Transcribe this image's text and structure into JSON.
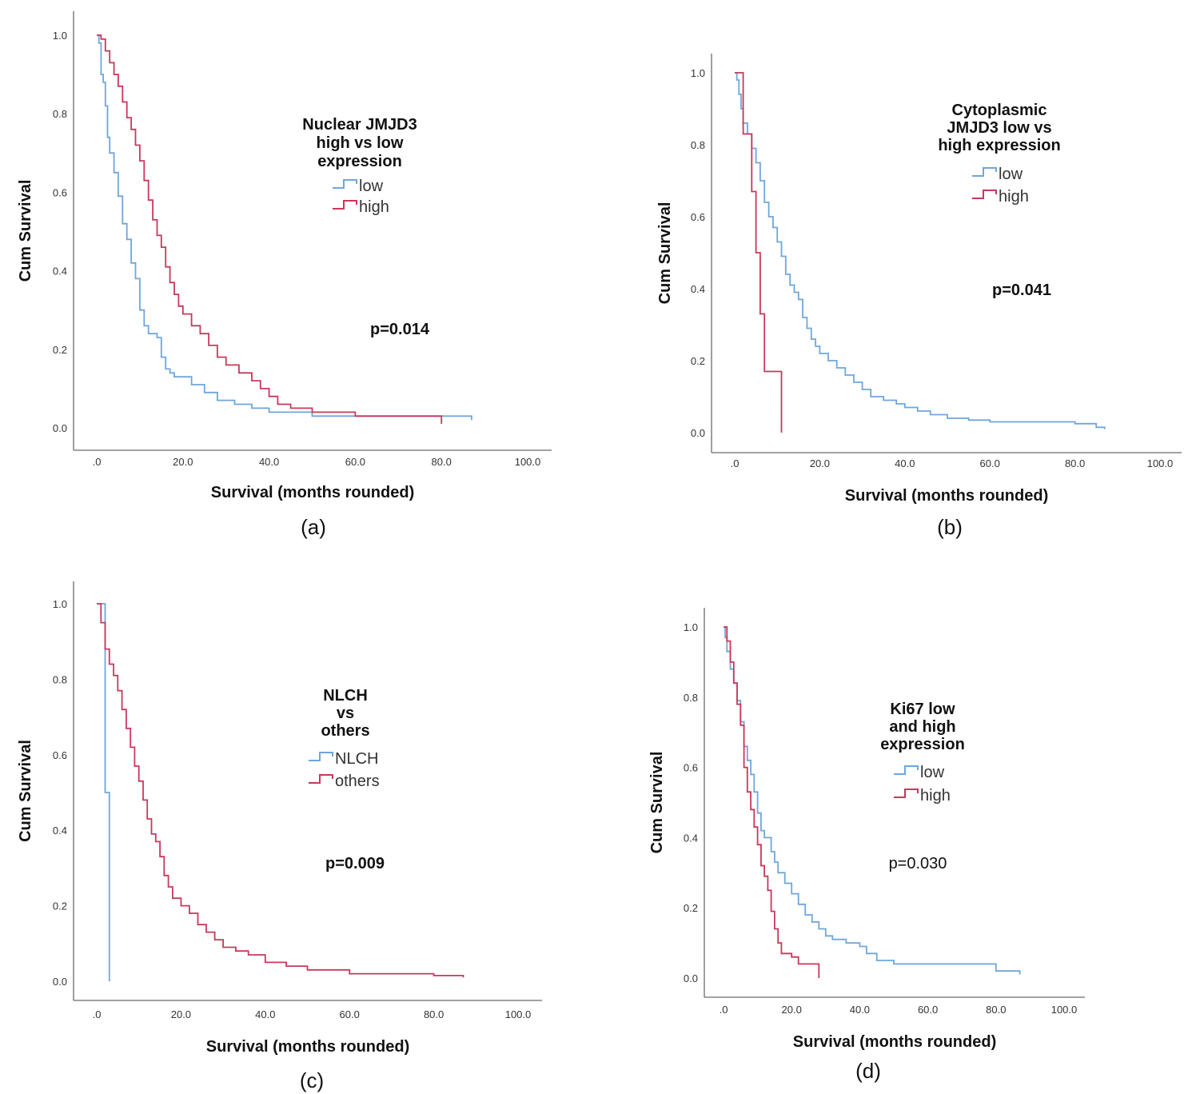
{
  "colors": {
    "low": "#6fa6dc",
    "high": "#c8385a",
    "axis": "#6b6b6b"
  },
  "chart_data": [
    {
      "id": "a",
      "type": "line",
      "caption": "(a)",
      "xlabel": "Survival (months rounded)",
      "ylabel": "Cum Survival",
      "xlim": [
        0,
        100
      ],
      "ylim": [
        0,
        1
      ],
      "xticks": [
        ".0",
        "20.0",
        "40.0",
        "60.0",
        "80.0",
        "100.0"
      ],
      "yticks": [
        "0.0",
        "0.2",
        "0.4",
        "0.6",
        "0.8",
        "1.0"
      ],
      "legend_title": [
        "Nuclear JMJD3",
        "high vs low",
        "expression"
      ],
      "p_value": "p=0.014",
      "p_bold": true,
      "series": [
        {
          "name": "low",
          "color": "#6fa6dc",
          "points": [
            [
              0,
              1
            ],
            [
              0.5,
              0.98
            ],
            [
              1,
              0.9
            ],
            [
              1.5,
              0.88
            ],
            [
              2,
              0.82
            ],
            [
              2.5,
              0.74
            ],
            [
              3,
              0.7
            ],
            [
              4,
              0.65
            ],
            [
              5,
              0.59
            ],
            [
              6,
              0.52
            ],
            [
              7,
              0.48
            ],
            [
              8,
              0.42
            ],
            [
              9,
              0.38
            ],
            [
              10,
              0.3
            ],
            [
              11,
              0.26
            ],
            [
              12,
              0.24
            ],
            [
              14,
              0.23
            ],
            [
              15,
              0.18
            ],
            [
              16,
              0.15
            ],
            [
              17,
              0.14
            ],
            [
              18,
              0.13
            ],
            [
              22,
              0.11
            ],
            [
              25,
              0.09
            ],
            [
              28,
              0.07
            ],
            [
              32,
              0.06
            ],
            [
              36,
              0.05
            ],
            [
              40,
              0.04
            ],
            [
              50,
              0.03
            ],
            [
              65,
              0.03
            ],
            [
              80,
              0.03
            ],
            [
              87,
              0.03
            ],
            [
              87,
              0.02
            ]
          ]
        },
        {
          "name": "high",
          "color": "#c8385a",
          "points": [
            [
              0,
              1
            ],
            [
              1,
              0.99
            ],
            [
              2,
              0.96
            ],
            [
              3,
              0.93
            ],
            [
              4,
              0.9
            ],
            [
              5,
              0.87
            ],
            [
              6,
              0.83
            ],
            [
              7,
              0.79
            ],
            [
              8,
              0.76
            ],
            [
              9,
              0.72
            ],
            [
              10,
              0.68
            ],
            [
              11,
              0.63
            ],
            [
              12,
              0.58
            ],
            [
              13,
              0.53
            ],
            [
              14,
              0.49
            ],
            [
              15,
              0.46
            ],
            [
              16,
              0.41
            ],
            [
              17,
              0.37
            ],
            [
              18,
              0.34
            ],
            [
              19,
              0.31
            ],
            [
              20,
              0.29
            ],
            [
              22,
              0.26
            ],
            [
              24,
              0.24
            ],
            [
              26,
              0.21
            ],
            [
              28,
              0.18
            ],
            [
              30,
              0.16
            ],
            [
              33,
              0.14
            ],
            [
              36,
              0.12
            ],
            [
              38,
              0.1
            ],
            [
              40,
              0.08
            ],
            [
              42,
              0.06
            ],
            [
              45,
              0.05
            ],
            [
              50,
              0.04
            ],
            [
              60,
              0.03
            ],
            [
              70,
              0.03
            ],
            [
              80,
              0.03
            ],
            [
              80,
              0.01
            ]
          ]
        }
      ]
    },
    {
      "id": "b",
      "type": "line",
      "caption": "(b)",
      "xlabel": "Survival (months rounded)",
      "ylabel": "Cum Survival",
      "xlim": [
        0,
        100
      ],
      "ylim": [
        0,
        1
      ],
      "xticks": [
        ".0",
        "20.0",
        "40.0",
        "60.0",
        "80.0",
        "100.0"
      ],
      "yticks": [
        "0.0",
        "0.2",
        "0.4",
        "0.6",
        "0.8",
        "1.0"
      ],
      "legend_title": [
        "Cytoplasmic",
        "JMJD3 low vs",
        "high expression"
      ],
      "p_value": "p=0.041",
      "p_bold": true,
      "series": [
        {
          "name": "low",
          "color": "#6fa6dc",
          "points": [
            [
              0,
              1
            ],
            [
              0.5,
              0.98
            ],
            [
              1,
              0.94
            ],
            [
              1.5,
              0.9
            ],
            [
              2,
              0.86
            ],
            [
              3,
              0.83
            ],
            [
              4,
              0.79
            ],
            [
              5,
              0.75
            ],
            [
              6,
              0.7
            ],
            [
              7,
              0.64
            ],
            [
              8,
              0.6
            ],
            [
              9,
              0.57
            ],
            [
              10,
              0.53
            ],
            [
              11,
              0.49
            ],
            [
              12,
              0.44
            ],
            [
              13,
              0.41
            ],
            [
              14,
              0.39
            ],
            [
              15,
              0.37
            ],
            [
              16,
              0.32
            ],
            [
              17,
              0.29
            ],
            [
              18,
              0.26
            ],
            [
              19,
              0.24
            ],
            [
              20,
              0.22
            ],
            [
              22,
              0.2
            ],
            [
              24,
              0.18
            ],
            [
              26,
              0.16
            ],
            [
              28,
              0.14
            ],
            [
              30,
              0.12
            ],
            [
              32,
              0.1
            ],
            [
              35,
              0.09
            ],
            [
              38,
              0.08
            ],
            [
              40,
              0.07
            ],
            [
              43,
              0.06
            ],
            [
              46,
              0.05
            ],
            [
              50,
              0.04
            ],
            [
              55,
              0.035
            ],
            [
              60,
              0.03
            ],
            [
              70,
              0.03
            ],
            [
              80,
              0.025
            ],
            [
              85,
              0.015
            ],
            [
              87,
              0.01
            ]
          ]
        },
        {
          "name": "high",
          "color": "#c8385a",
          "points": [
            [
              0,
              1
            ],
            [
              2,
              1
            ],
            [
              2,
              0.83
            ],
            [
              3,
              0.83
            ],
            [
              4,
              0.67
            ],
            [
              5,
              0.67
            ],
            [
              5,
              0.5
            ],
            [
              6,
              0.5
            ],
            [
              6,
              0.33
            ],
            [
              7,
              0.33
            ],
            [
              7,
              0.17
            ],
            [
              11,
              0.17
            ],
            [
              11,
              0
            ]
          ]
        }
      ]
    },
    {
      "id": "c",
      "type": "line",
      "caption": "(c)",
      "xlabel": "Survival (months rounded)",
      "ylabel": "Cum Survival",
      "xlim": [
        0,
        100
      ],
      "ylim": [
        0,
        1
      ],
      "xticks": [
        ".0",
        "20.0",
        "40.0",
        "60.0",
        "80.0",
        "100.0"
      ],
      "yticks": [
        "0.0",
        "0.2",
        "0.4",
        "0.6",
        "0.8",
        "1.0"
      ],
      "legend_title": [
        "NLCH",
        "vs",
        "others"
      ],
      "p_value": "p=0.009",
      "p_bold": true,
      "series": [
        {
          "name": "NLCH",
          "color": "#6fa6dc",
          "points": [
            [
              0,
              1
            ],
            [
              2,
              1
            ],
            [
              2,
              0.5
            ],
            [
              3,
              0.5
            ],
            [
              3,
              0
            ]
          ]
        },
        {
          "name": "others",
          "color": "#c8385a",
          "points": [
            [
              0,
              1
            ],
            [
              1,
              0.95
            ],
            [
              2,
              0.88
            ],
            [
              3,
              0.84
            ],
            [
              4,
              0.81
            ],
            [
              5,
              0.77
            ],
            [
              6,
              0.72
            ],
            [
              7,
              0.67
            ],
            [
              8,
              0.62
            ],
            [
              9,
              0.57
            ],
            [
              10,
              0.53
            ],
            [
              11,
              0.48
            ],
            [
              12,
              0.43
            ],
            [
              13,
              0.39
            ],
            [
              14,
              0.37
            ],
            [
              15,
              0.33
            ],
            [
              16,
              0.28
            ],
            [
              17,
              0.25
            ],
            [
              18,
              0.22
            ],
            [
              20,
              0.2
            ],
            [
              22,
              0.18
            ],
            [
              24,
              0.15
            ],
            [
              26,
              0.13
            ],
            [
              28,
              0.11
            ],
            [
              30,
              0.09
            ],
            [
              33,
              0.08
            ],
            [
              36,
              0.07
            ],
            [
              40,
              0.05
            ],
            [
              45,
              0.04
            ],
            [
              50,
              0.03
            ],
            [
              60,
              0.02
            ],
            [
              70,
              0.02
            ],
            [
              80,
              0.015
            ],
            [
              87,
              0.01
            ]
          ]
        }
      ]
    },
    {
      "id": "d",
      "type": "line",
      "caption": "(d)",
      "xlabel": "Survival (months rounded)",
      "ylabel": "Cum Survival",
      "xlim": [
        0,
        100
      ],
      "ylim": [
        0,
        1
      ],
      "xticks": [
        ".0",
        "20.0",
        "40.0",
        "60.0",
        "80.0",
        "100.0"
      ],
      "yticks": [
        "0.0",
        "0.2",
        "0.4",
        "0.6",
        "0.8",
        "1.0"
      ],
      "legend_title": [
        "Ki67 low",
        "and high",
        "expression"
      ],
      "p_value": "p=0.030",
      "p_bold": false,
      "series": [
        {
          "name": "low",
          "color": "#6fa6dc",
          "points": [
            [
              0,
              1
            ],
            [
              0.5,
              0.97
            ],
            [
              1,
              0.93
            ],
            [
              2,
              0.88
            ],
            [
              3,
              0.84
            ],
            [
              4,
              0.79
            ],
            [
              5,
              0.73
            ],
            [
              6,
              0.66
            ],
            [
              7,
              0.62
            ],
            [
              8,
              0.58
            ],
            [
              9,
              0.53
            ],
            [
              10,
              0.47
            ],
            [
              11,
              0.42
            ],
            [
              12,
              0.4
            ],
            [
              14,
              0.36
            ],
            [
              15,
              0.33
            ],
            [
              16,
              0.3
            ],
            [
              18,
              0.27
            ],
            [
              20,
              0.24
            ],
            [
              22,
              0.21
            ],
            [
              24,
              0.18
            ],
            [
              26,
              0.16
            ],
            [
              28,
              0.14
            ],
            [
              30,
              0.12
            ],
            [
              32,
              0.11
            ],
            [
              36,
              0.1
            ],
            [
              40,
              0.09
            ],
            [
              42,
              0.07
            ],
            [
              45,
              0.05
            ],
            [
              50,
              0.04
            ],
            [
              60,
              0.04
            ],
            [
              70,
              0.04
            ],
            [
              80,
              0.02
            ],
            [
              87,
              0.01
            ]
          ]
        },
        {
          "name": "high",
          "color": "#c8385a",
          "points": [
            [
              0,
              1
            ],
            [
              1,
              0.96
            ],
            [
              2,
              0.9
            ],
            [
              3,
              0.84
            ],
            [
              4,
              0.78
            ],
            [
              5,
              0.72
            ],
            [
              6,
              0.6
            ],
            [
              7,
              0.53
            ],
            [
              8,
              0.48
            ],
            [
              9,
              0.43
            ],
            [
              10,
              0.38
            ],
            [
              11,
              0.32
            ],
            [
              12,
              0.29
            ],
            [
              13,
              0.25
            ],
            [
              14,
              0.19
            ],
            [
              15,
              0.14
            ],
            [
              16,
              0.1
            ],
            [
              17,
              0.07
            ],
            [
              20,
              0.06
            ],
            [
              22,
              0.04
            ],
            [
              28,
              0.02
            ],
            [
              28,
              0
            ]
          ]
        }
      ]
    }
  ]
}
